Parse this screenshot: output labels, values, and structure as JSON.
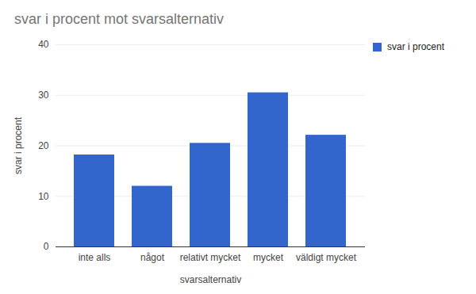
{
  "chart_data": {
    "type": "bar",
    "title": "svar i procent mot svarsalternativ",
    "x_label": "svarsalternativ",
    "y_label": "svar i procent",
    "categories": [
      "inte alls",
      "något",
      "relativt mycket",
      "mycket",
      "väldigt mycket"
    ],
    "series": [
      {
        "name": "svar i procent",
        "color": "#3366cc",
        "values": [
          18.2,
          12,
          20.5,
          30.5,
          22.1
        ]
      }
    ],
    "ylim": [
      0,
      40
    ],
    "yticks": [
      0,
      10,
      20,
      30,
      40
    ],
    "grid": true,
    "legend": "right"
  }
}
